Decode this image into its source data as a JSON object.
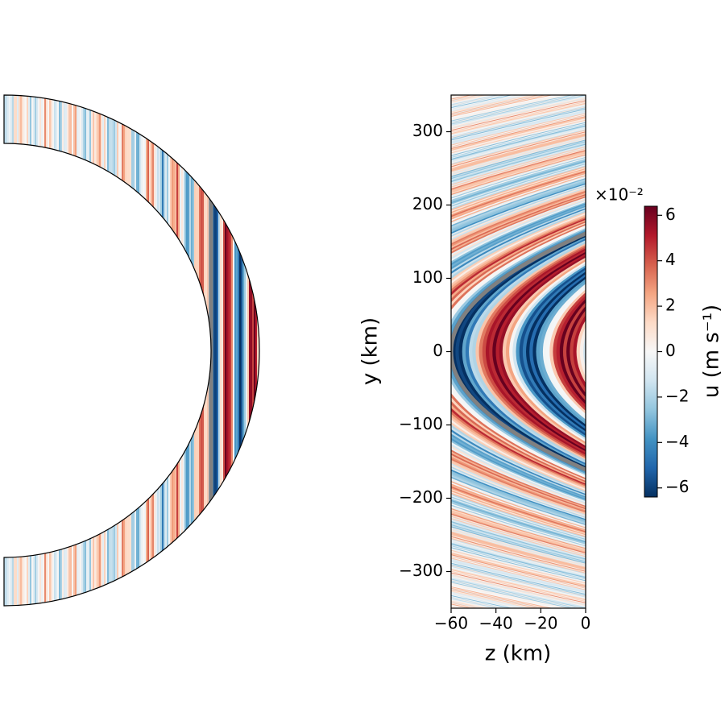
{
  "chart_data": {
    "type": "heatmap",
    "xlabel": "z (km)",
    "ylabel": "y (km)",
    "xlim": [
      -60,
      0
    ],
    "xticks": [
      {
        "value": -60,
        "label": "−60"
      },
      {
        "value": -40,
        "label": "−40"
      },
      {
        "value": -20,
        "label": "−20"
      },
      0
    ],
    "ylim": [
      -350,
      350
    ],
    "yticks": [
      {
        "value": -300,
        "label": "−300"
      },
      {
        "value": -200,
        "label": "−200"
      },
      {
        "value": -100,
        "label": "−100"
      },
      0,
      100,
      200,
      300
    ],
    "colorbar": {
      "label": "u (m s⁻¹)",
      "offset_label": "×10⁻²",
      "lim": [
        -6.4,
        6.4
      ],
      "ticks": [
        {
          "value": -6,
          "label": "−6"
        },
        {
          "value": -4,
          "label": "−4"
        },
        {
          "value": -2,
          "label": "−2"
        },
        0,
        2,
        4,
        6
      ],
      "colormap": [
        "#053061",
        "#2166ac",
        "#4393c3",
        "#92c5de",
        "#d1e5f0",
        "#f7f7f7",
        "#fddbc7",
        "#f4a582",
        "#d6604d",
        "#b2182b",
        "#67001f"
      ]
    }
  }
}
